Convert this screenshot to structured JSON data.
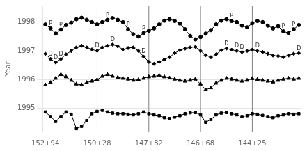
{
  "chart_data": {
    "type": "line",
    "y_label": "Year",
    "x": [
      0,
      1,
      2,
      3,
      4,
      5,
      6,
      7,
      8,
      9,
      10,
      11,
      12,
      13,
      14,
      15,
      16,
      17,
      18,
      19,
      20,
      21,
      22,
      23,
      24,
      25,
      26,
      27,
      28,
      29,
      30,
      31,
      32,
      33,
      34,
      35,
      36,
      37,
      38,
      39,
      40,
      41,
      42,
      43,
      44,
      45,
      46,
      47,
      48,
      49
    ],
    "xlim": [
      -0.5,
      49.5
    ],
    "xticks": [
      {
        "value": 0,
        "label": "152+94"
      },
      {
        "value": 10,
        "label": "150+28"
      },
      {
        "value": 20,
        "label": "147+82"
      },
      {
        "value": 30,
        "label": "146+68"
      },
      {
        "value": 40,
        "label": "144+25"
      }
    ],
    "ylim": [
      1994.2,
      1998.55
    ],
    "yticks": [
      1995,
      1996,
      1997,
      1998
    ],
    "grid": "y",
    "vlines": [
      10,
      20,
      30,
      40
    ],
    "series": [
      {
        "color": "#000000",
        "marker": "square",
        "values": [
          1994.88,
          1994.72,
          1994.55,
          1994.72,
          1994.88,
          1994.8,
          1994.3,
          1994.38,
          1994.58,
          1994.82,
          1994.9,
          1994.94,
          1994.88,
          1994.84,
          1994.82,
          1994.82,
          1994.8,
          1994.78,
          1994.82,
          1994.88,
          1994.82,
          1994.78,
          1994.75,
          1994.68,
          1994.65,
          1994.7,
          1994.75,
          1994.82,
          1994.85,
          1994.86,
          1994.78,
          1994.52,
          1994.62,
          1994.78,
          1994.84,
          1994.86,
          1994.82,
          1994.78,
          1994.72,
          1994.75,
          1994.82,
          1994.8,
          1994.76,
          1994.72,
          1994.68,
          1994.75,
          1994.78,
          1994.82,
          1994.8,
          1994.82
        ]
      },
      {
        "color": "#000000",
        "marker": "triangle",
        "values": [
          1995.82,
          1995.9,
          1996.05,
          1996.18,
          1996.1,
          1995.98,
          1995.85,
          1995.82,
          1995.9,
          1995.95,
          1996.0,
          1996.12,
          1996.18,
          1996.12,
          1996.08,
          1996.05,
          1996.02,
          1995.98,
          1996.0,
          1996.05,
          1996.1,
          1996.12,
          1996.15,
          1996.1,
          1996.06,
          1996.02,
          1995.98,
          1995.95,
          1995.98,
          1996.02,
          1995.85,
          1995.65,
          1995.72,
          1995.88,
          1995.98,
          1996.05,
          1996.02,
          1995.98,
          1995.95,
          1995.98,
          1996.04,
          1996.01,
          1995.98,
          1995.95,
          1995.92,
          1995.98,
          1996.02,
          1996.05,
          1996.02,
          1996.05
        ]
      },
      {
        "color": "#000000",
        "marker": "diamond",
        "values": [
          1996.9,
          1996.72,
          1996.6,
          1996.72,
          1996.88,
          1997.0,
          1997.12,
          1997.18,
          1997.12,
          1997.05,
          1997.0,
          1997.12,
          1997.18,
          1997.22,
          1997.16,
          1997.05,
          1997.1,
          1997.12,
          1997.0,
          1996.8,
          1996.62,
          1996.55,
          1996.62,
          1996.7,
          1996.78,
          1996.92,
          1997.02,
          1997.08,
          1997.12,
          1997.14,
          1997.0,
          1996.85,
          1996.78,
          1996.88,
          1997.02,
          1997.08,
          1997.04,
          1997.0,
          1996.96,
          1997.0,
          1997.04,
          1997.0,
          1996.96,
          1996.9,
          1996.84,
          1996.82,
          1996.78,
          1996.84,
          1996.9,
          1996.92
        ]
      },
      {
        "color": "#000000",
        "marker": "circle",
        "values": [
          1997.92,
          1997.78,
          1997.6,
          1997.74,
          1997.9,
          1997.98,
          1998.1,
          1998.15,
          1998.08,
          1998.0,
          1997.92,
          1998.0,
          1998.08,
          1998.14,
          1998.08,
          1998.0,
          1997.75,
          1997.58,
          1997.5,
          1997.62,
          1997.7,
          1997.78,
          1997.92,
          1998.05,
          1998.1,
          1998.04,
          1997.95,
          1997.75,
          1997.52,
          1997.4,
          1997.48,
          1997.6,
          1997.72,
          1997.92,
          1998.05,
          1998.1,
          1998.04,
          1998.0,
          1997.88,
          1997.82,
          1997.96,
          1998.04,
          1998.0,
          1997.88,
          1997.78,
          1997.86,
          1997.68,
          1997.62,
          1997.75,
          1997.9
        ]
      }
    ],
    "annotations": [
      {
        "x": 1,
        "y": 1997.78,
        "text": "P"
      },
      {
        "x": 3,
        "y": 1997.74,
        "text": "P"
      },
      {
        "x": 12,
        "y": 1998.08,
        "text": "P"
      },
      {
        "x": 16,
        "y": 1997.75,
        "text": "P"
      },
      {
        "x": 19,
        "y": 1997.62,
        "text": "P"
      },
      {
        "x": 36,
        "y": 1998.04,
        "text": "P"
      },
      {
        "x": 46,
        "y": 1997.68,
        "text": "P"
      },
      {
        "x": 48,
        "y": 1997.75,
        "text": "P"
      },
      {
        "x": 1,
        "y": 1996.72,
        "text": "D"
      },
      {
        "x": 2,
        "y": 1996.6,
        "text": "D"
      },
      {
        "x": 3,
        "y": 1996.72,
        "text": "D"
      },
      {
        "x": 10,
        "y": 1997.0,
        "text": "D"
      },
      {
        "x": 13,
        "y": 1997.22,
        "text": "D"
      },
      {
        "x": 19,
        "y": 1996.8,
        "text": "D"
      },
      {
        "x": 35,
        "y": 1997.08,
        "text": "D"
      },
      {
        "x": 37,
        "y": 1997.0,
        "text": "D"
      },
      {
        "x": 38,
        "y": 1996.96,
        "text": "D"
      },
      {
        "x": 41,
        "y": 1997.0,
        "text": "D"
      },
      {
        "x": 49,
        "y": 1996.92,
        "text": "D"
      }
    ]
  }
}
